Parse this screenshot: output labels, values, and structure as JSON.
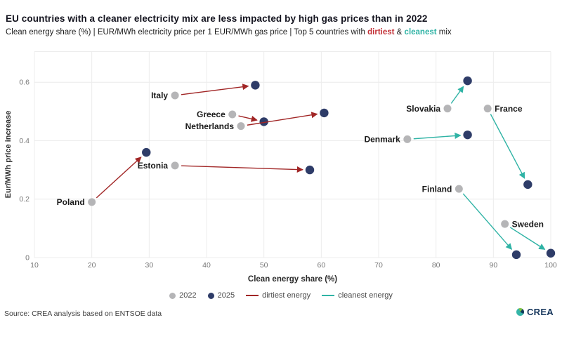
{
  "header": {
    "title": "EU countries with a cleaner electricity mix are less impacted by high gas prices than in 2022",
    "subtitle_prefix": "Clean energy share (%) | EUR/MWh electricity price per 1 EUR/MWh gas price | Top 5 countries with ",
    "subtitle_dirtiest": "dirtiest",
    "subtitle_amp": " & ",
    "subtitle_cleanest": "cleanest",
    "subtitle_suffix": " mix"
  },
  "chart_data": {
    "type": "scatter",
    "title": "EU countries with a cleaner electricity mix are less impacted by high gas prices than in 2022",
    "xlabel": "Clean energy share (%)",
    "ylabel": "Eur/MWh price increase",
    "xlim": [
      10,
      100
    ],
    "ylim": [
      0,
      0.705
    ],
    "grid": true,
    "x_ticks": [
      10,
      20,
      30,
      40,
      50,
      60,
      70,
      80,
      90,
      100
    ],
    "y_ticks": [
      {
        "v": 0,
        "label": "0"
      },
      {
        "v": 0.2,
        "label": "0.2"
      },
      {
        "v": 0.4,
        "label": "0.4"
      },
      {
        "v": 0.6,
        "label": "0.6"
      }
    ],
    "series_years": [
      "2022",
      "2025"
    ],
    "countries": [
      {
        "name": "Poland",
        "group": "dirtiest",
        "p2022": [
          20,
          0.19
        ],
        "p2025": [
          29.5,
          0.36
        ],
        "label_side": "left"
      },
      {
        "name": "Estonia",
        "group": "dirtiest",
        "p2022": [
          34.5,
          0.315
        ],
        "p2025": [
          58,
          0.3
        ],
        "label_side": "left"
      },
      {
        "name": "Italy",
        "group": "dirtiest",
        "p2022": [
          34.5,
          0.555
        ],
        "p2025": [
          48.5,
          0.59
        ],
        "label_side": "left"
      },
      {
        "name": "Greece",
        "group": "dirtiest",
        "p2022": [
          44.5,
          0.49
        ],
        "p2025": [
          50,
          0.465
        ],
        "label_side": "left"
      },
      {
        "name": "Netherlands",
        "group": "dirtiest",
        "p2022": [
          46,
          0.45
        ],
        "p2025": [
          60.5,
          0.495
        ],
        "label_side": "left"
      },
      {
        "name": "Denmark",
        "group": "cleanest",
        "p2022": [
          75,
          0.405
        ],
        "p2025": [
          85.5,
          0.42
        ],
        "label_side": "left"
      },
      {
        "name": "Slovakia",
        "group": "cleanest",
        "p2022": [
          82,
          0.51
        ],
        "p2025": [
          85.5,
          0.605
        ],
        "label_side": "left"
      },
      {
        "name": "France",
        "group": "cleanest",
        "p2022": [
          89,
          0.51
        ],
        "p2025": [
          96,
          0.25
        ],
        "label_side": "right"
      },
      {
        "name": "Finland",
        "group": "cleanest",
        "p2022": [
          84,
          0.235
        ],
        "p2025": [
          94,
          0.01
        ],
        "label_side": "left"
      },
      {
        "name": "Sweden",
        "group": "cleanest",
        "p2022": [
          92,
          0.115
        ],
        "p2025": [
          100,
          0.015
        ],
        "label_side": "right"
      }
    ],
    "legend": {
      "items": [
        {
          "label": "2022",
          "swatch": "dot",
          "color": "#b5b5b7"
        },
        {
          "label": "2025",
          "swatch": "dot",
          "color": "#2e3c68"
        },
        {
          "label": "dirtiest energy",
          "swatch": "line",
          "color": "#a12626"
        },
        {
          "label": "cleanest energy",
          "swatch": "line",
          "color": "#2fb3a5"
        }
      ],
      "position": "bottom-center"
    },
    "colors": {
      "dot_2022": "#b5b5b7",
      "dot_2025": "#2e3c68",
      "dirtiest": "#a12626",
      "cleanest": "#2fb3a5",
      "grid": "#ececec",
      "tick_text": "#767676",
      "axis_title_text": "#2b2b2b",
      "country_label_text": "#1a1a1a"
    }
  },
  "footer": {
    "source": "Source: CREA analysis based on ENTSOE data",
    "logo_text": "CREA"
  }
}
